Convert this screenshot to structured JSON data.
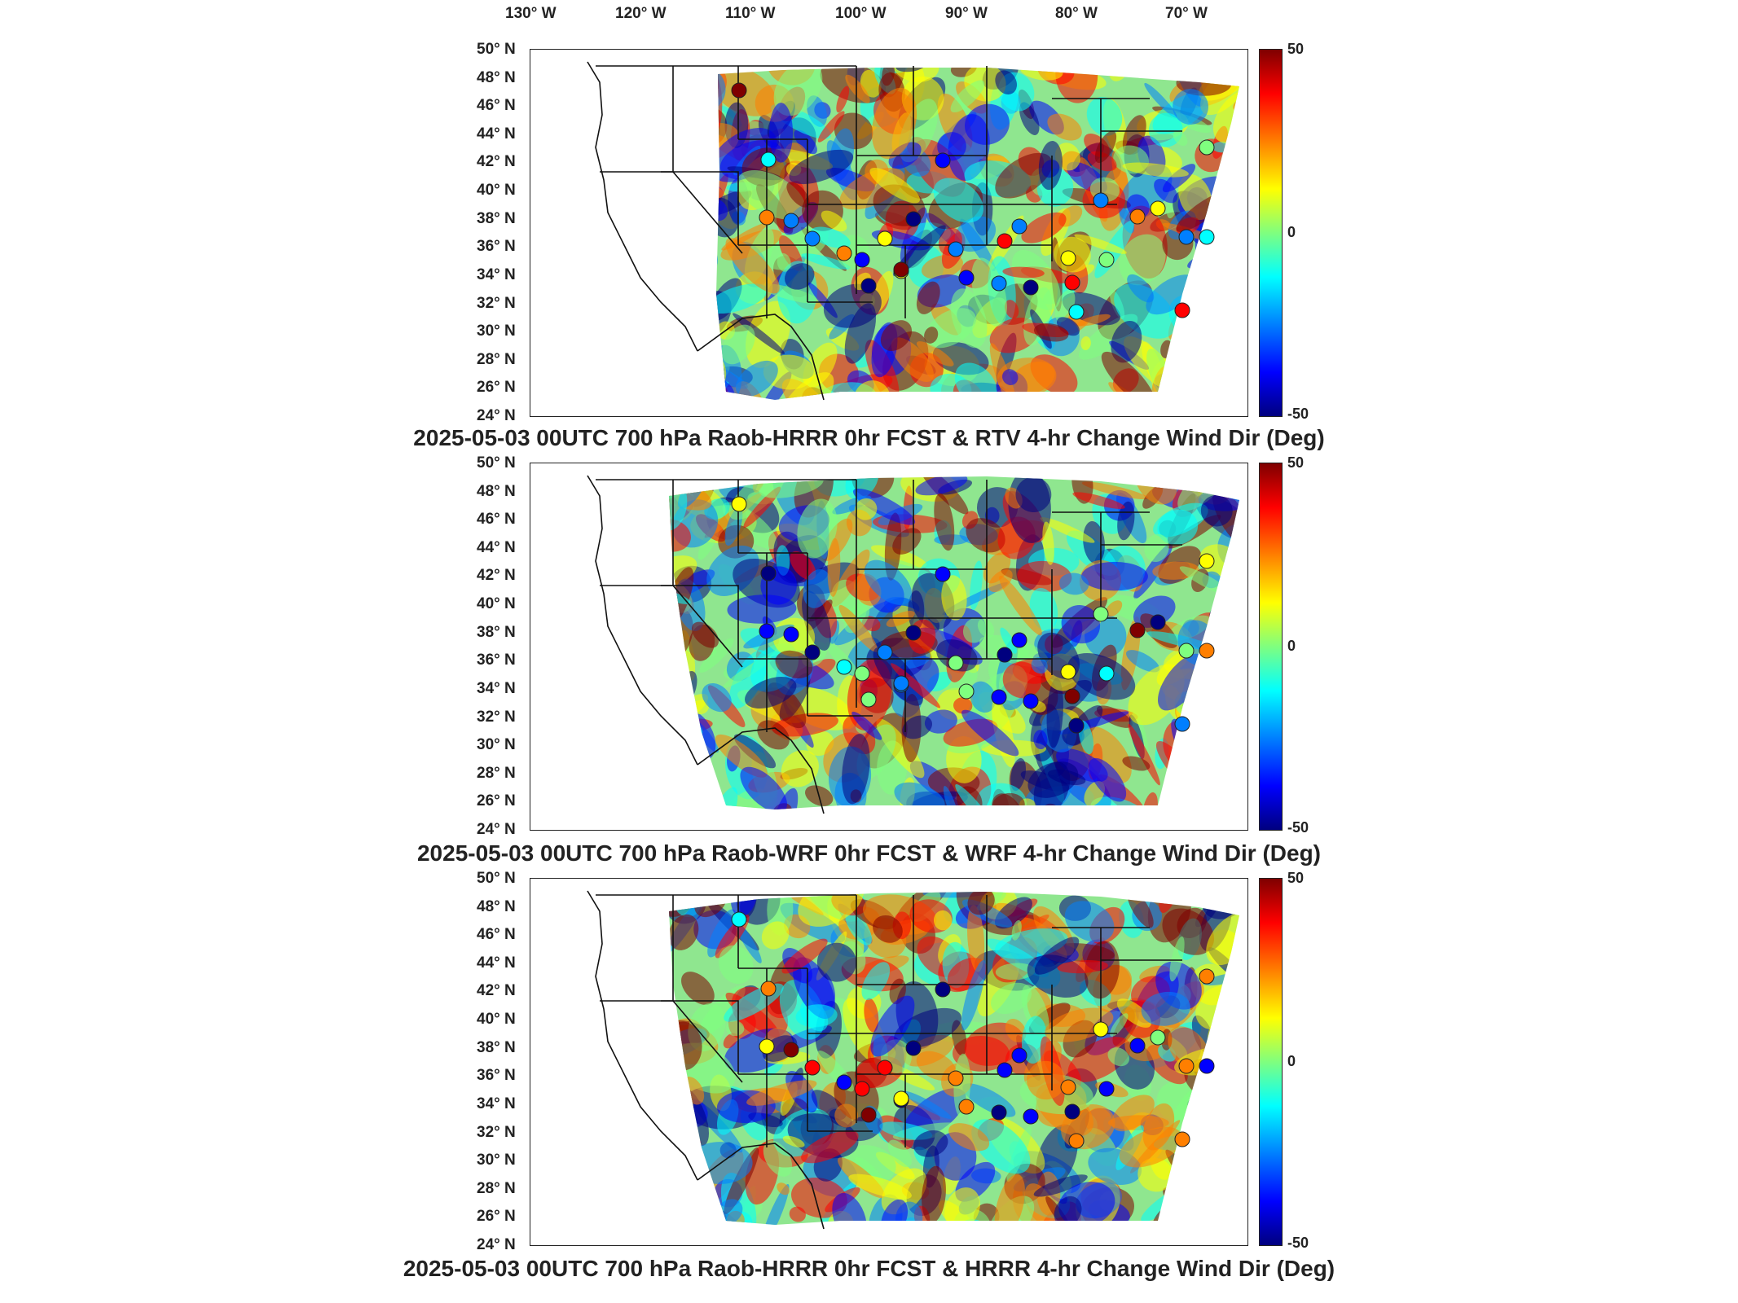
{
  "longitude_labels": [
    "130° W",
    "120° W",
    "110° W",
    "100° W",
    "90° W",
    "80° W",
    "70° W"
  ],
  "latitude_labels": [
    "50° N",
    "48° N",
    "46° N",
    "44° N",
    "42° N",
    "40° N",
    "38° N",
    "36° N",
    "34° N",
    "32° N",
    "30° N",
    "28° N",
    "26° N",
    "24° N"
  ],
  "colorbar": {
    "max_label": "50",
    "mid_label": "0",
    "min_label": "-50",
    "colors": [
      "#00007f",
      "#0000ff",
      "#007fff",
      "#00ffff",
      "#7fff7f",
      "#ffff00",
      "#ff7f00",
      "#ff0000",
      "#7f0000"
    ]
  },
  "panels": [
    {
      "title": "2025-05-03 00UTC 700 hPa Raob-HRRR 0hr FCST & RTV 4-hr Change Wind Dir (Deg)"
    },
    {
      "title": "2025-05-03 00UTC 700 hPa Raob-WRF 0hr FCST & WRF 4-hr Change Wind Dir (Deg)"
    },
    {
      "title": "2025-05-03 00UTC 700 hPa Raob-HRRR 0hr FCST & HRRR 4-hr Change Wind Dir (Deg)"
    }
  ]
}
